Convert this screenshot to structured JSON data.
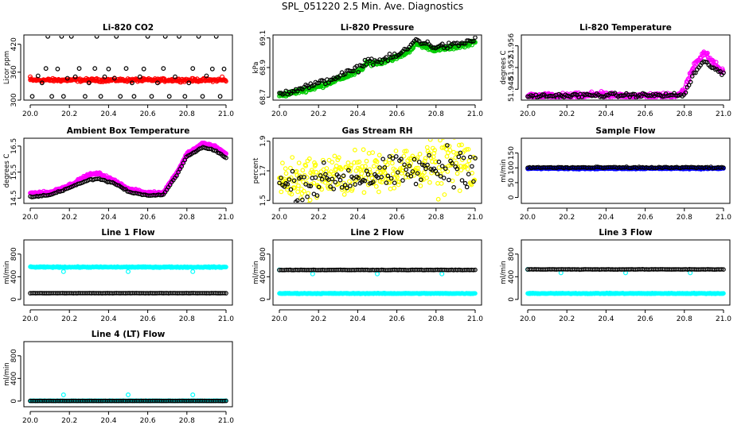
{
  "title": "SPL_051220  2.5 Min. Ave. Diagnostics",
  "colors": {
    "black": "#000000",
    "red": "#ff0000",
    "green": "#00cc00",
    "magenta": "#ff00ff",
    "yellow": "#ffff00",
    "blue": "#0000ff",
    "cyan": "#00ffff"
  },
  "chart_data": [
    {
      "type": "scatter",
      "title": "Li-820 CO2",
      "ylabel": "Licor ppm",
      "xlim": [
        20.0,
        21.0
      ],
      "ylim": [
        300,
        440
      ],
      "xticks": [
        "20.0",
        "20.2",
        "20.4",
        "20.6",
        "20.8",
        "21.0"
      ],
      "yticks": [
        {
          "v": 300,
          "label": "300"
        },
        {
          "v": 360,
          "label": "360"
        },
        {
          "v": 420,
          "label": "420"
        }
      ],
      "series": [
        {
          "color": "red",
          "kind": "dense",
          "base": 343,
          "noise": 3,
          "bumps": [
            [
              20.0,
              350
            ],
            [
              20.98,
              350
            ]
          ]
        },
        {
          "color": "black",
          "kind": "points",
          "points": [
            [
              20.01,
              308
            ],
            [
              20.04,
              352
            ],
            [
              20.06,
              337
            ],
            [
              20.08,
              368
            ],
            [
              20.09,
              437
            ],
            [
              20.11,
              308
            ],
            [
              20.14,
              367
            ],
            [
              20.16,
              437
            ],
            [
              20.17,
              308
            ],
            [
              20.19,
              347
            ],
            [
              20.21,
              437
            ],
            [
              20.23,
              350
            ],
            [
              20.25,
              368
            ],
            [
              20.28,
              308
            ],
            [
              20.3,
              337
            ],
            [
              20.33,
              368
            ],
            [
              20.34,
              437
            ],
            [
              20.36,
              308
            ],
            [
              20.38,
              350
            ],
            [
              20.4,
              367
            ],
            [
              20.43,
              347
            ],
            [
              20.44,
              437
            ],
            [
              20.46,
              308
            ],
            [
              20.49,
              368
            ],
            [
              20.52,
              337
            ],
            [
              20.53,
              308
            ],
            [
              20.56,
              350
            ],
            [
              20.58,
              367
            ],
            [
              20.6,
              437
            ],
            [
              20.62,
              308
            ],
            [
              20.65,
              337
            ],
            [
              20.68,
              368
            ],
            [
              20.69,
              437
            ],
            [
              20.71,
              308
            ],
            [
              20.74,
              350
            ],
            [
              20.76,
              437
            ],
            [
              20.79,
              308
            ],
            [
              20.81,
              337
            ],
            [
              20.83,
              368
            ],
            [
              20.86,
              437
            ],
            [
              20.88,
              308
            ],
            [
              20.9,
              352
            ],
            [
              20.93,
              367
            ],
            [
              20.95,
              437
            ],
            [
              20.97,
              308
            ],
            [
              20.99,
              367
            ]
          ]
        }
      ]
    },
    {
      "type": "scatter",
      "title": "Li-820 Pressure",
      "ylabel": "kPa",
      "xlim": [
        20.0,
        21.0
      ],
      "ylim": [
        68.68,
        69.12
      ],
      "xticks": [
        "20.0",
        "20.2",
        "20.4",
        "20.6",
        "20.8",
        "21.0"
      ],
      "yticks": [
        {
          "v": 68.7,
          "label": "68.7"
        },
        {
          "v": 68.9,
          "label": "68.9"
        },
        {
          "v": 69.1,
          "label": "69.1"
        }
      ],
      "series": [
        {
          "color": "green",
          "kind": "curve",
          "noise": 0.012,
          "spread": 0.01,
          "knots": [
            [
              20.0,
              68.71
            ],
            [
              20.1,
              68.74
            ],
            [
              20.2,
              68.77
            ],
            [
              20.3,
              68.82
            ],
            [
              20.4,
              68.87
            ],
            [
              20.45,
              68.93
            ],
            [
              20.5,
              68.93
            ],
            [
              20.6,
              68.97
            ],
            [
              20.65,
              69.0
            ],
            [
              20.7,
              69.06
            ],
            [
              20.75,
              69.04
            ],
            [
              20.8,
              69.02
            ],
            [
              20.9,
              69.04
            ],
            [
              21.0,
              69.07
            ]
          ]
        },
        {
          "color": "black",
          "kind": "curve",
          "noise": 0.018,
          "spread": 0.04,
          "knots": [
            [
              20.0,
              68.72
            ],
            [
              20.1,
              68.76
            ],
            [
              20.2,
              68.79
            ],
            [
              20.3,
              68.84
            ],
            [
              20.4,
              68.89
            ],
            [
              20.45,
              68.95
            ],
            [
              20.5,
              68.94
            ],
            [
              20.6,
              68.98
            ],
            [
              20.65,
              69.02
            ],
            [
              20.7,
              69.09
            ],
            [
              20.75,
              69.06
            ],
            [
              20.8,
              69.04
            ],
            [
              20.9,
              69.05
            ],
            [
              21.0,
              69.09
            ]
          ]
        }
      ]
    },
    {
      "type": "scatter",
      "title": "Li-820 Temperature",
      "ylabel": "degrees C",
      "xlim": [
        20.0,
        21.0
      ],
      "ylim": [
        51.946,
        51.958
      ],
      "xticks": [
        "20.0",
        "20.2",
        "20.4",
        "20.6",
        "20.8",
        "21.0"
      ],
      "yticks": [
        {
          "v": 51.948,
          "label": "51.948"
        },
        {
          "v": 51.952,
          "label": "51.952"
        },
        {
          "v": 51.956,
          "label": "51.956"
        }
      ],
      "series": [
        {
          "color": "magenta",
          "kind": "curve",
          "noise": 0.0004,
          "spread": 0.28,
          "knots": [
            [
              20.0,
              51.9467
            ],
            [
              20.3,
              51.9468
            ],
            [
              20.35,
              51.9472
            ],
            [
              20.4,
              51.9468
            ],
            [
              20.75,
              51.9468
            ],
            [
              20.8,
              51.9478
            ],
            [
              20.85,
              51.9525
            ],
            [
              20.9,
              51.9548
            ],
            [
              20.95,
              51.9528
            ],
            [
              21.0,
              51.951
            ]
          ]
        },
        {
          "color": "black",
          "kind": "curve",
          "noise": 0.0003,
          "spread": 0.22,
          "knots": [
            [
              20.0,
              51.9467
            ],
            [
              20.35,
              51.9469
            ],
            [
              20.8,
              51.9469
            ],
            [
              20.85,
              51.951
            ],
            [
              20.9,
              51.953
            ],
            [
              20.95,
              51.952
            ],
            [
              21.0,
              51.9505
            ]
          ]
        }
      ]
    },
    {
      "type": "scatter",
      "title": "Ambient Box Temperature",
      "ylabel": "degrees C",
      "xlim": [
        20.0,
        21.0
      ],
      "ylim": [
        14.3,
        16.8
      ],
      "xticks": [
        "20.0",
        "20.2",
        "20.4",
        "20.6",
        "20.8",
        "21.0"
      ],
      "yticks": [
        {
          "v": 14.5,
          "label": "14.5"
        },
        {
          "v": 15.5,
          "label": "15.5"
        },
        {
          "v": 16.5,
          "label": "16.5"
        }
      ],
      "series": [
        {
          "color": "magenta",
          "kind": "curve",
          "noise": 0.04,
          "spread": 0.05,
          "knots": [
            [
              20.0,
              14.7
            ],
            [
              20.1,
              14.72
            ],
            [
              20.2,
              15.0
            ],
            [
              20.3,
              15.4
            ],
            [
              20.35,
              15.45
            ],
            [
              20.45,
              15.1
            ],
            [
              20.5,
              14.85
            ],
            [
              20.6,
              14.7
            ],
            [
              20.68,
              14.72
            ],
            [
              20.75,
              15.5
            ],
            [
              20.8,
              16.2
            ],
            [
              20.88,
              16.6
            ],
            [
              20.94,
              16.5
            ],
            [
              21.0,
              16.2
            ]
          ]
        },
        {
          "color": "black",
          "kind": "curve",
          "noise": 0.02,
          "spread": 0,
          "knots": [
            [
              20.0,
              14.55
            ],
            [
              20.1,
              14.62
            ],
            [
              20.2,
              14.9
            ],
            [
              20.3,
              15.2
            ],
            [
              20.35,
              15.25
            ],
            [
              20.45,
              15.0
            ],
            [
              20.5,
              14.75
            ],
            [
              20.6,
              14.6
            ],
            [
              20.68,
              14.62
            ],
            [
              20.75,
              15.4
            ],
            [
              20.8,
              16.1
            ],
            [
              20.88,
              16.45
            ],
            [
              20.94,
              16.35
            ],
            [
              21.0,
              16.05
            ]
          ]
        }
      ]
    },
    {
      "type": "scatter",
      "title": "Gas Stream RH",
      "ylabel": "percent",
      "xlim": [
        20.0,
        21.0
      ],
      "ylim": [
        1.48,
        1.92
      ],
      "xticks": [
        "20.0",
        "20.2",
        "20.4",
        "20.6",
        "20.8",
        "21.0"
      ],
      "yticks": [
        {
          "v": 1.5,
          "label": "1.5"
        },
        {
          "v": 1.7,
          "label": "1.7"
        },
        {
          "v": 1.9,
          "label": "1.9"
        }
      ],
      "series": [
        {
          "color": "yellow",
          "kind": "curve",
          "noise": 0.09,
          "spread": 1.1,
          "knots": [
            [
              20.0,
              1.63
            ],
            [
              20.5,
              1.7
            ],
            [
              21.0,
              1.78
            ]
          ]
        },
        {
          "color": "black",
          "kind": "curve",
          "noise": 0.08,
          "spread": 0.45,
          "knots": [
            [
              20.0,
              1.6
            ],
            [
              20.5,
              1.67
            ],
            [
              21.0,
              1.75
            ]
          ]
        }
      ]
    },
    {
      "type": "scatter",
      "title": "Sample Flow",
      "ylabel": "ml/min",
      "xlim": [
        20.0,
        21.0
      ],
      "ylim": [
        -20,
        200
      ],
      "xticks": [
        "20.0",
        "20.2",
        "20.4",
        "20.6",
        "20.8",
        "21.0"
      ],
      "yticks": [
        {
          "v": 0,
          "label": "0"
        },
        {
          "v": 50,
          "label": "50"
        },
        {
          "v": 100,
          "label": "100"
        },
        {
          "v": 150,
          "label": "150"
        }
      ],
      "series": [
        {
          "color": "blue",
          "kind": "dense",
          "base": 98,
          "noise": 2,
          "bumps": []
        },
        {
          "color": "black",
          "kind": "rowpts",
          "y": 101,
          "noise": 2
        }
      ]
    },
    {
      "type": "scatter",
      "title": "Line 1 Flow",
      "ylabel": "ml/min",
      "xlim": [
        20.0,
        21.0
      ],
      "ylim": [
        -100,
        1050
      ],
      "xticks": [
        "20.0",
        "20.2",
        "20.4",
        "20.6",
        "20.8",
        "21.0"
      ],
      "yticks": [
        {
          "v": 0,
          "label": "0"
        },
        {
          "v": 400,
          "label": "400"
        },
        {
          "v": 800,
          "label": "800"
        }
      ],
      "series": [
        {
          "color": "cyan",
          "kind": "dense",
          "base": 570,
          "noise": 8,
          "bumps": [
            [
              20.17,
              490
            ],
            [
              20.5,
              490
            ],
            [
              20.83,
              490
            ]
          ]
        },
        {
          "color": "black",
          "kind": "rowpts",
          "y": 110,
          "noise": 2
        }
      ]
    },
    {
      "type": "scatter",
      "title": "Line 2 Flow",
      "ylabel": "ml/min",
      "xlim": [
        20.0,
        21.0
      ],
      "ylim": [
        -100,
        1050
      ],
      "xticks": [
        "20.0",
        "20.2",
        "20.4",
        "20.6",
        "20.8",
        "21.0"
      ],
      "yticks": [
        {
          "v": 0,
          "label": "0"
        },
        {
          "v": 400,
          "label": "400"
        },
        {
          "v": 800,
          "label": "800"
        }
      ],
      "series": [
        {
          "color": "cyan",
          "kind": "dense",
          "base": 105,
          "noise": 6,
          "bumps": [
            [
              20.0,
              520
            ],
            [
              20.17,
              450
            ],
            [
              20.5,
              450
            ],
            [
              20.83,
              450
            ]
          ]
        },
        {
          "color": "black",
          "kind": "rowpts",
          "y": 520,
          "noise": 3
        }
      ]
    },
    {
      "type": "scatter",
      "title": "Line 3 Flow",
      "ylabel": "ml/min",
      "xlim": [
        20.0,
        21.0
      ],
      "ylim": [
        -100,
        1050
      ],
      "xticks": [
        "20.0",
        "20.2",
        "20.4",
        "20.6",
        "20.8",
        "21.0"
      ],
      "yticks": [
        {
          "v": 0,
          "label": "0"
        },
        {
          "v": 400,
          "label": "400"
        },
        {
          "v": 800,
          "label": "800"
        }
      ],
      "series": [
        {
          "color": "cyan",
          "kind": "dense",
          "base": 105,
          "noise": 6,
          "bumps": [
            [
              20.0,
              530
            ],
            [
              20.17,
              470
            ],
            [
              20.5,
              470
            ],
            [
              20.83,
              470
            ]
          ]
        },
        {
          "color": "black",
          "kind": "rowpts",
          "y": 530,
          "noise": 3
        }
      ]
    },
    {
      "type": "scatter",
      "title": "Line 4 (LT) Flow",
      "ylabel": "ml/min",
      "xlim": [
        20.0,
        21.0
      ],
      "ylim": [
        -100,
        1050
      ],
      "xticks": [
        "20.0",
        "20.2",
        "20.4",
        "20.6",
        "20.8",
        "21.0"
      ],
      "yticks": [
        {
          "v": 0,
          "label": "0"
        },
        {
          "v": 400,
          "label": "400"
        },
        {
          "v": 800,
          "label": "800"
        }
      ],
      "series": [
        {
          "color": "cyan",
          "kind": "dense",
          "base": 5,
          "noise": 3,
          "bumps": [
            [
              20.17,
              110
            ],
            [
              20.5,
              110
            ],
            [
              20.83,
              110
            ]
          ]
        },
        {
          "color": "black",
          "kind": "rowpts",
          "y": 3,
          "noise": 1
        }
      ]
    }
  ]
}
